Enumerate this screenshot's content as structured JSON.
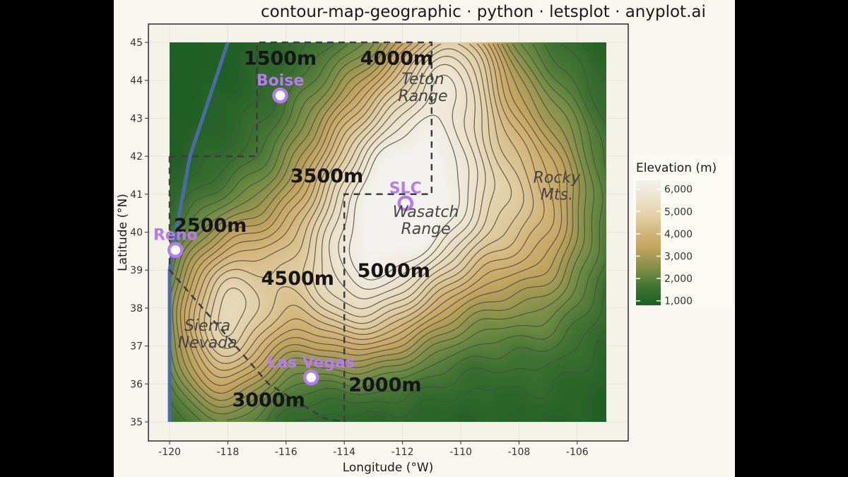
{
  "title": "contour-map-geographic · python · letsplot · anyplot.ai",
  "chart_data": {
    "type": "contour",
    "title": "contour-map-geographic · python · letsplot · anyplot.ai",
    "xlabel": "Longitude (°W)",
    "ylabel": "Latitude (°N)",
    "xlim": [
      -120,
      -105
    ],
    "ylim": [
      35,
      45
    ],
    "x_ticks": [
      -120,
      -118,
      -116,
      -114,
      -112,
      -110,
      -108,
      -106
    ],
    "x_tick_labels": [
      "-120",
      "-118",
      "-116",
      "-114",
      "-112",
      "-110",
      "-108",
      "-106"
    ],
    "y_ticks": [
      35,
      36,
      37,
      38,
      39,
      40,
      41,
      42,
      43,
      44,
      45
    ],
    "y_tick_labels": [
      "35",
      "36",
      "37",
      "38",
      "39",
      "40",
      "41",
      "42",
      "43",
      "44",
      "45"
    ],
    "grid": true,
    "legend": {
      "title": "Elevation (m)",
      "position": "right",
      "ticks": [
        1000,
        2000,
        3000,
        4000,
        5000,
        6000
      ],
      "tick_labels": [
        "1,000",
        "2,000",
        "3,000",
        "4,000",
        "5,000",
        "6,000"
      ],
      "range": [
        800,
        6400
      ]
    },
    "colormap": [
      {
        "value": 800,
        "color": "#1d5e24"
      },
      {
        "value": 1600,
        "color": "#3f7232"
      },
      {
        "value": 2200,
        "color": "#6b8a42"
      },
      {
        "value": 2800,
        "color": "#9a9650"
      },
      {
        "value": 3400,
        "color": "#c3a460"
      },
      {
        "value": 4000,
        "color": "#d3b479"
      },
      {
        "value": 4800,
        "color": "#e2d0a8"
      },
      {
        "value": 5600,
        "color": "#ece2cd"
      },
      {
        "value": 6400,
        "color": "#f4f2ee"
      }
    ],
    "elevation_model": {
      "base": 800,
      "peaks": [
        {
          "lon": -111.6,
          "lat": 41.2,
          "height": 5800,
          "sx": 2.6,
          "sy": 2.4
        },
        {
          "lon": -110.2,
          "lat": 44.6,
          "height": 2600,
          "sx": 1.3,
          "sy": 1.2
        },
        {
          "lon": -118.2,
          "lat": 37.5,
          "height": 3600,
          "sx": 1.4,
          "sy": 1.8
        },
        {
          "lon": -115.0,
          "lat": 39.0,
          "height": 2000,
          "sx": 2.4,
          "sy": 1.6
        },
        {
          "lon": -107.0,
          "lat": 40.5,
          "height": 1900,
          "sx": 1.5,
          "sy": 2.5
        },
        {
          "lon": -113.6,
          "lat": 37.6,
          "height": 1300,
          "sx": 1.6,
          "sy": 1.2
        }
      ],
      "contour_interval": 250
    },
    "contour_labels": [
      {
        "text": "1500m",
        "lon": -116.2,
        "lat": 44.6
      },
      {
        "text": "4000m",
        "lon": -112.2,
        "lat": 44.6
      },
      {
        "text": "3500m",
        "lon": -114.6,
        "lat": 41.5
      },
      {
        "text": "2500m",
        "lon": -118.6,
        "lat": 40.2
      },
      {
        "text": "4500m",
        "lon": -115.6,
        "lat": 38.8
      },
      {
        "text": "5000m",
        "lon": -112.3,
        "lat": 39.0
      },
      {
        "text": "2000m",
        "lon": -112.6,
        "lat": 36.0
      },
      {
        "text": "3000m",
        "lon": -116.6,
        "lat": 35.6
      }
    ],
    "region_labels": [
      {
        "lines": [
          "Teton",
          "Range"
        ],
        "lon": -111.3,
        "lat": 43.9
      },
      {
        "lines": [
          "Rocky",
          "Mts."
        ],
        "lon": -106.7,
        "lat": 41.3
      },
      {
        "lines": [
          "Wasatch",
          "Range"
        ],
        "lon": -111.2,
        "lat": 40.4
      },
      {
        "lines": [
          "Sierra",
          "Nevada"
        ],
        "lon": -118.7,
        "lat": 37.4
      }
    ],
    "cities": [
      {
        "name": "Boise",
        "lon": -116.2,
        "lat": 43.6
      },
      {
        "name": "SLC",
        "lon": -111.9,
        "lat": 40.76
      },
      {
        "name": "Reno",
        "lon": -119.8,
        "lat": 39.53
      },
      {
        "name": "Las Vegas",
        "lon": -115.14,
        "lat": 36.17
      }
    ],
    "borders": [
      [
        [
          -120,
          42
        ],
        [
          -117,
          42
        ],
        [
          -117,
          45
        ],
        [
          -111,
          45
        ],
        [
          -111,
          41
        ],
        [
          -114,
          41
        ],
        [
          -114,
          35
        ]
      ],
      [
        [
          -120,
          42
        ],
        [
          -120,
          39
        ],
        [
          -116.6,
          36
        ],
        [
          -114.7,
          35.1
        ],
        [
          -114,
          35
        ]
      ]
    ],
    "coastline": [
      [
        -118,
        45
      ],
      [
        -119.3,
        42
      ],
      [
        -119.9,
        39.5
      ],
      [
        -120,
        39
      ],
      [
        -120,
        35
      ]
    ]
  }
}
